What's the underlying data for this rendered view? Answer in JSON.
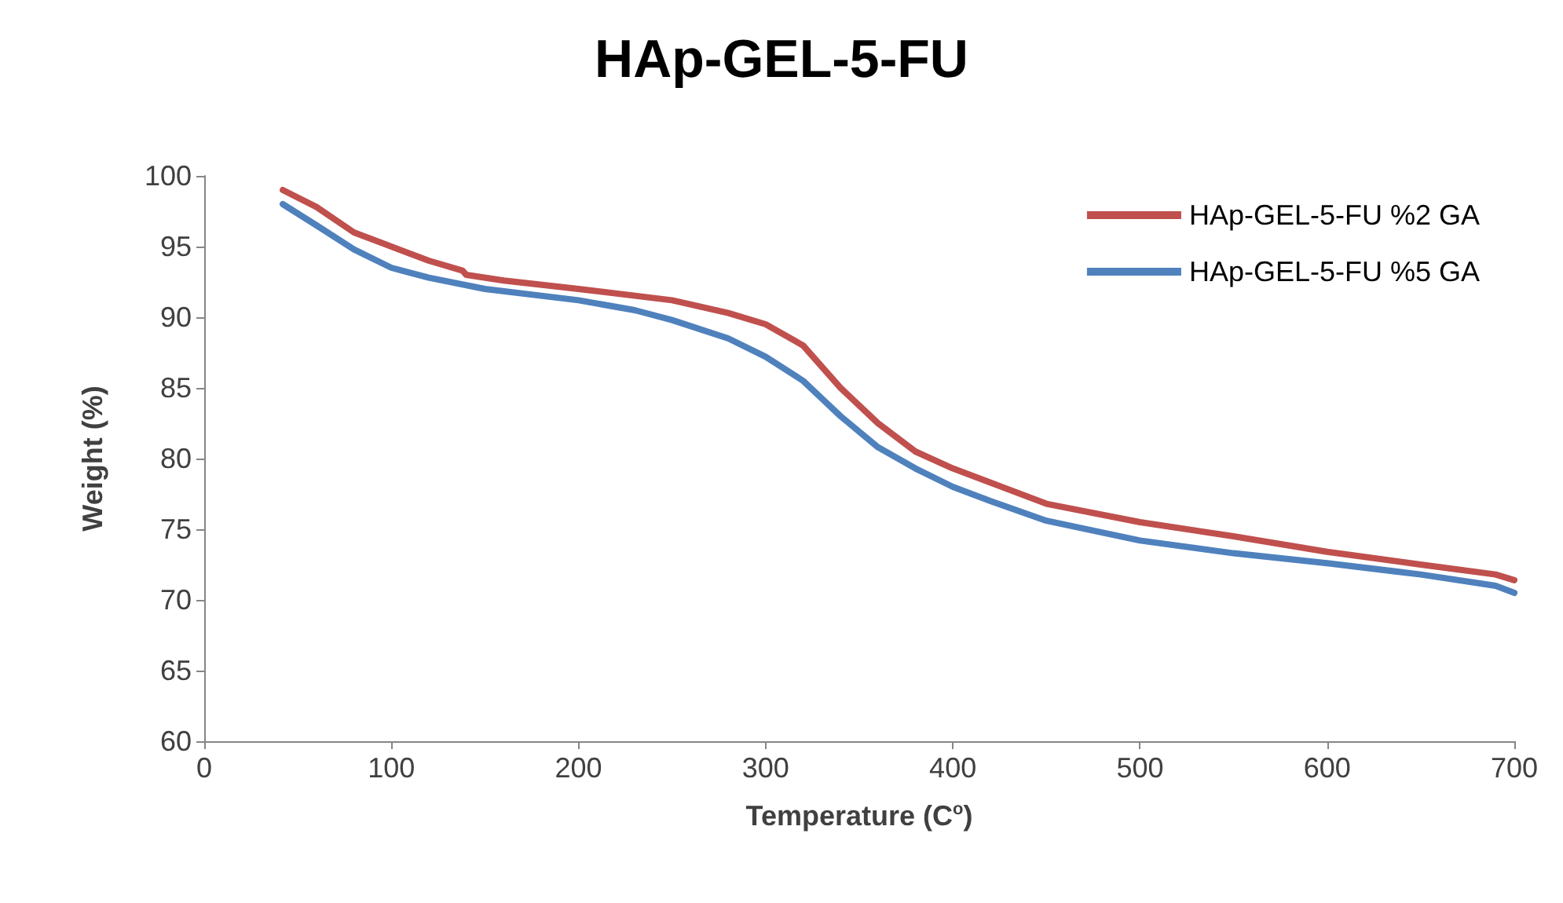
{
  "chart_data": {
    "type": "line",
    "title": "HAp-GEL-5-FU",
    "xlabel": "Temperature (C$^{o}$)",
    "ylabel": "Weight (%)",
    "xlim": [
      0,
      700
    ],
    "xticks": [
      0,
      100,
      200,
      300,
      400,
      500,
      600,
      700
    ],
    "ylim": [
      60,
      100
    ],
    "yticks": [
      60,
      65,
      70,
      75,
      80,
      85,
      90,
      95,
      100
    ],
    "grid": false,
    "legend": "top right",
    "marker": "none",
    "line_style": "solid",
    "series": [
      {
        "name": "HAp-GEL-5-FU %2 GA",
        "color": "#c0504d",
        "x": [
          42,
          60,
          80,
          100,
          120,
          138,
          140,
          160,
          200,
          250,
          280,
          300,
          320,
          340,
          360,
          380,
          400,
          420,
          450,
          500,
          550,
          600,
          650,
          690,
          700
        ],
        "values": [
          99.0,
          97.8,
          96.0,
          95.0,
          94.0,
          93.3,
          93.0,
          92.6,
          92.0,
          91.2,
          90.3,
          89.5,
          88.0,
          85.0,
          82.5,
          80.5,
          79.3,
          78.3,
          76.8,
          75.5,
          74.5,
          73.4,
          72.5,
          71.8,
          71.4
        ]
      },
      {
        "name": "HAp-GEL-5-FU %5 GA",
        "color": "#4f81bd",
        "x": [
          42,
          60,
          80,
          100,
          120,
          150,
          200,
          230,
          250,
          280,
          300,
          320,
          340,
          360,
          380,
          400,
          420,
          450,
          500,
          550,
          600,
          650,
          690,
          700
        ],
        "values": [
          98.0,
          96.5,
          94.8,
          93.5,
          92.8,
          92.0,
          91.2,
          90.5,
          89.8,
          88.5,
          87.2,
          85.5,
          83.0,
          80.8,
          79.3,
          78.0,
          77.0,
          75.6,
          74.2,
          73.3,
          72.6,
          71.8,
          71.0,
          70.5
        ]
      }
    ]
  }
}
